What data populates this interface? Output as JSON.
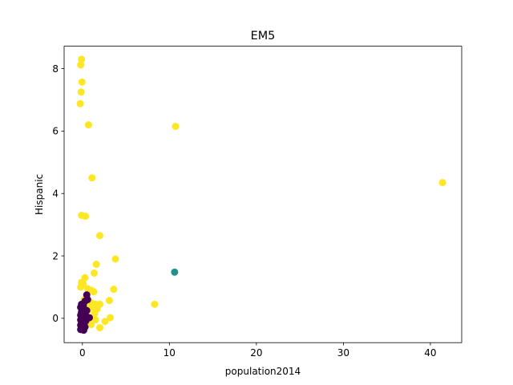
{
  "chart_data": {
    "type": "scatter",
    "title": "EM5",
    "xlabel": "population2014",
    "ylabel": "Hispanic",
    "xlim": [
      -2.1,
      43.6
    ],
    "ylim": [
      -0.78,
      8.72
    ],
    "xticks": [
      0,
      10,
      20,
      30,
      40
    ],
    "yticks": [
      0,
      2,
      4,
      6,
      8
    ],
    "grid": false,
    "legend": "none",
    "colors": {
      "cluster_purple": "#440154",
      "cluster_teal": "#21918c",
      "cluster_yellow": "#fde725"
    },
    "series": [
      {
        "color_key": "cluster_yellow",
        "points": [
          [
            -0.1,
            8.3
          ],
          [
            -0.2,
            8.12
          ],
          [
            -0.05,
            7.57
          ],
          [
            -0.15,
            7.25
          ],
          [
            -0.25,
            6.88
          ],
          [
            0.7,
            6.2
          ],
          [
            10.7,
            6.15
          ],
          [
            41.4,
            4.35
          ],
          [
            1.1,
            4.5
          ],
          [
            -0.1,
            3.3
          ],
          [
            0.35,
            3.27
          ],
          [
            2.0,
            2.65
          ],
          [
            3.8,
            1.9
          ],
          [
            1.6,
            1.73
          ],
          [
            1.35,
            1.45
          ],
          [
            0.3,
            1.3
          ],
          [
            -0.1,
            1.15
          ],
          [
            0.1,
            1.1
          ],
          [
            -0.2,
            1.0
          ],
          [
            0.6,
            0.95
          ],
          [
            1.0,
            0.9
          ],
          [
            1.3,
            0.85
          ],
          [
            3.6,
            0.93
          ],
          [
            0.2,
            0.6
          ],
          [
            0.5,
            0.55
          ],
          [
            3.1,
            0.57
          ],
          [
            1.0,
            0.5
          ],
          [
            1.5,
            0.45
          ],
          [
            2.0,
            0.45
          ],
          [
            8.3,
            0.45
          ],
          [
            0.9,
            0.4
          ],
          [
            1.2,
            0.35
          ],
          [
            1.7,
            0.3
          ],
          [
            0.6,
            0.25
          ],
          [
            1.4,
            0.15
          ],
          [
            0.4,
            0.05
          ],
          [
            3.2,
            0.02
          ],
          [
            1.5,
            -0.05
          ],
          [
            2.6,
            -0.1
          ],
          [
            1.0,
            -0.2
          ],
          [
            2.0,
            -0.3
          ],
          [
            0.3,
            -0.15
          ]
        ]
      },
      {
        "color_key": "cluster_teal",
        "points": [
          [
            10.6,
            1.48
          ]
        ]
      },
      {
        "color_key": "cluster_purple",
        "points": [
          [
            0.5,
            0.75
          ],
          [
            0.6,
            0.6
          ],
          [
            0.3,
            0.55
          ],
          [
            -0.1,
            0.45
          ],
          [
            0.1,
            0.42
          ],
          [
            -0.2,
            0.35
          ],
          [
            0.2,
            0.3
          ],
          [
            0.5,
            0.25
          ],
          [
            -0.1,
            0.2
          ],
          [
            0.3,
            0.15
          ],
          [
            -0.2,
            0.1
          ],
          [
            0.1,
            0.08
          ],
          [
            0.5,
            0.05
          ],
          [
            0.8,
            0.02
          ],
          [
            -0.1,
            0.0
          ],
          [
            0.2,
            -0.02
          ],
          [
            -0.2,
            -0.05
          ],
          [
            0.4,
            -0.08
          ],
          [
            0.0,
            -0.1
          ],
          [
            -0.1,
            -0.15
          ],
          [
            0.2,
            -0.18
          ],
          [
            -0.2,
            -0.22
          ],
          [
            0.1,
            -0.25
          ],
          [
            0.3,
            -0.28
          ],
          [
            -0.1,
            -0.3
          ],
          [
            0.0,
            -0.33
          ],
          [
            -0.2,
            -0.36
          ],
          [
            0.15,
            -0.38
          ]
        ]
      }
    ]
  }
}
